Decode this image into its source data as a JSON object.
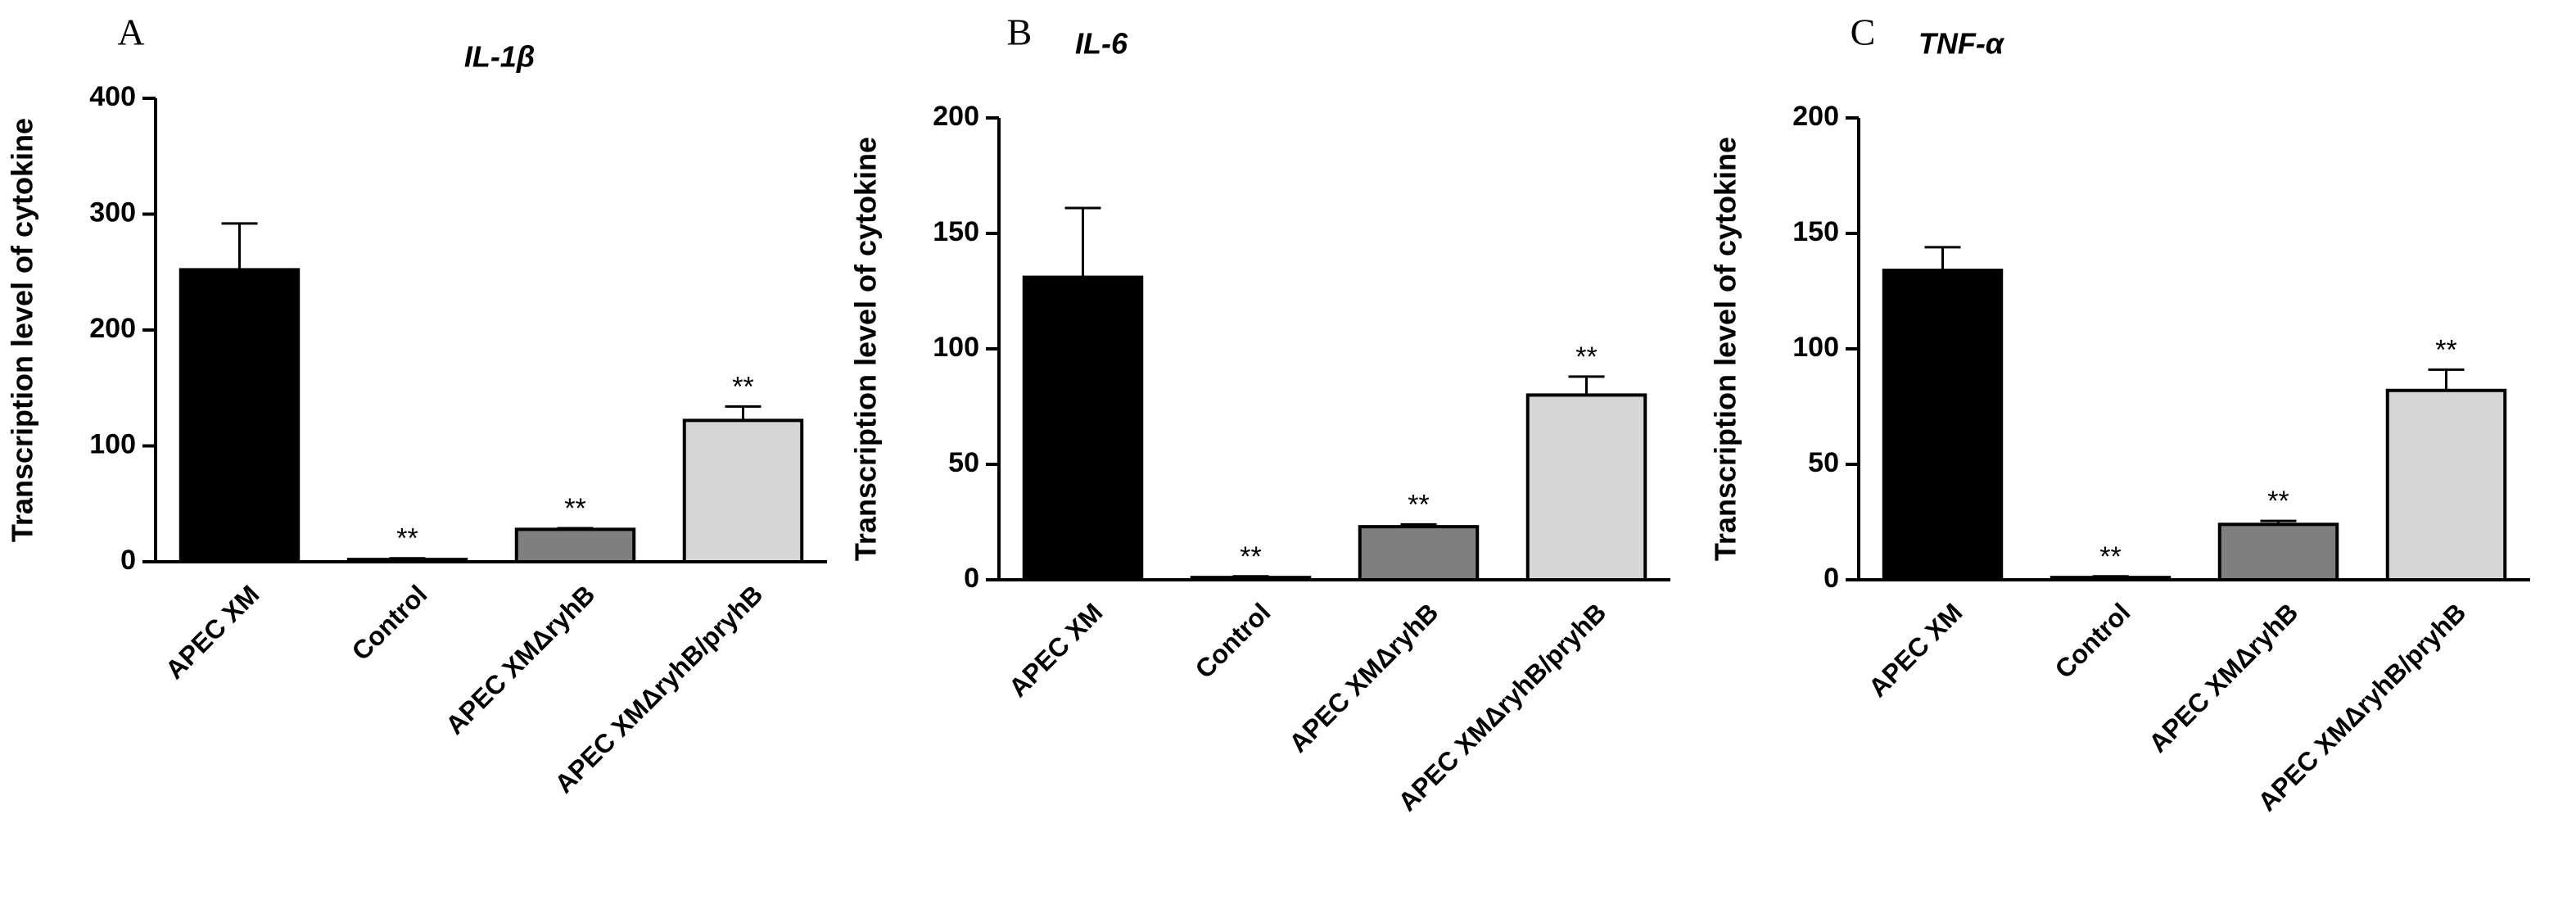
{
  "chart_data": [
    {
      "type": "bar",
      "panel": "A",
      "title": "IL-1β",
      "y_label": "Transcription level of cytokine",
      "categories": [
        "APEC XM",
        "Control",
        "APEC XMΔryhB",
        "APEC XMΔryhB/pryhB"
      ],
      "values": [
        252,
        2,
        28,
        122
      ],
      "errors": [
        40,
        1,
        1,
        12
      ],
      "significance": [
        null,
        "**",
        "**",
        "**"
      ],
      "colors": [
        "#000000",
        "#ffffff",
        "#7f7f7f",
        "#d6d6d6"
      ],
      "ylim": [
        0,
        400
      ],
      "yticks": [
        0,
        100,
        200,
        300,
        400
      ]
    },
    {
      "type": "bar",
      "panel": "B",
      "title": "IL-6",
      "y_label": "Transcription level of cytokine",
      "categories": [
        "APEC XM",
        "Control",
        "APEC XMΔryhB",
        "APEC XMΔryhB/pryhB"
      ],
      "values": [
        131,
        1,
        23,
        80
      ],
      "errors": [
        30,
        0.5,
        1,
        8
      ],
      "significance": [
        null,
        "**",
        "**",
        "**"
      ],
      "colors": [
        "#000000",
        "#ffffff",
        "#7f7f7f",
        "#d6d6d6"
      ],
      "ylim": [
        0,
        200
      ],
      "yticks": [
        0,
        50,
        100,
        150,
        200
      ]
    },
    {
      "type": "bar",
      "panel": "C",
      "title": "TNF-α",
      "y_label": "Transcription level of cytokine",
      "categories": [
        "APEC XM",
        "Control",
        "APEC XMΔryhB",
        "APEC XMΔryhB/pryhB"
      ],
      "values": [
        134,
        1,
        24,
        82
      ],
      "errors": [
        10,
        0.5,
        1.5,
        9
      ],
      "significance": [
        null,
        "**",
        "**",
        "**"
      ],
      "colors": [
        "#000000",
        "#ffffff",
        "#7f7f7f",
        "#d6d6d6"
      ],
      "ylim": [
        0,
        200
      ],
      "yticks": [
        0,
        50,
        100,
        150,
        200
      ]
    }
  ]
}
